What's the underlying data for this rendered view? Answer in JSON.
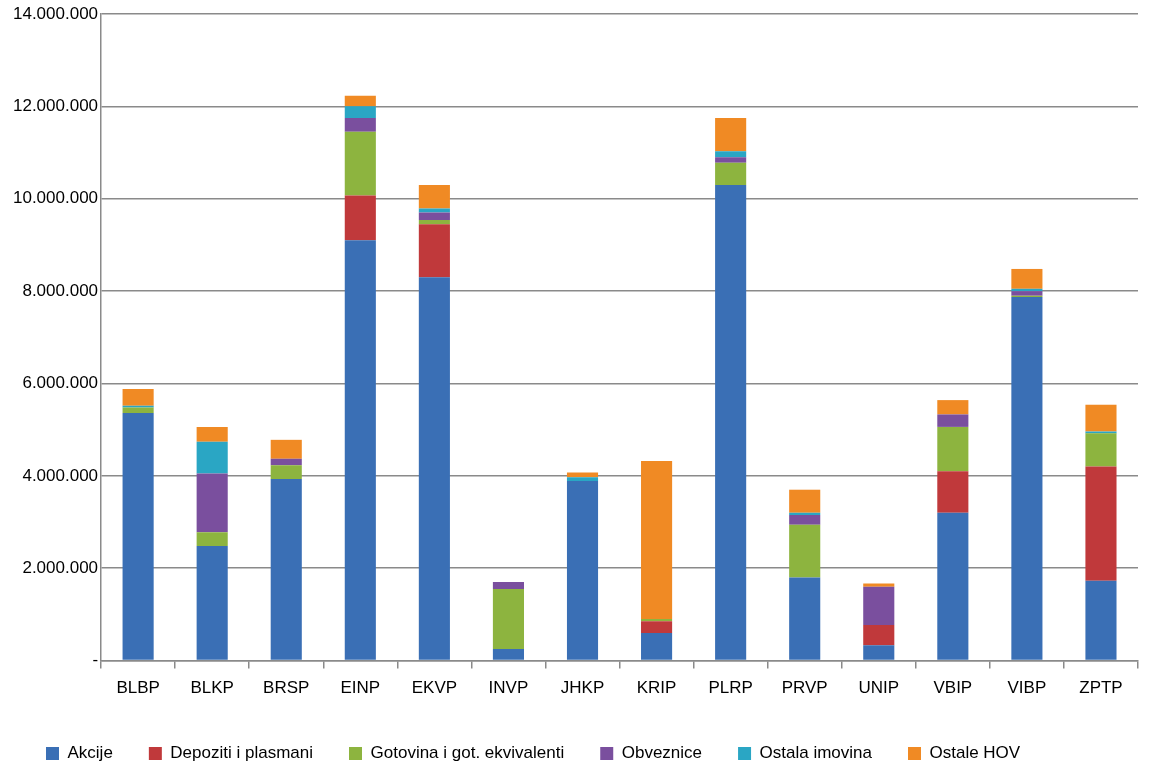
{
  "chart_data": {
    "type": "bar",
    "stacked": true,
    "categories": [
      "BLBP",
      "BLKP",
      "BRSP",
      "EINP",
      "EKVP",
      "INVP",
      "JHKP",
      "KRIP",
      "PLRP",
      "PRVP",
      "UNIP",
      "VBIP",
      "VIBP",
      "ZPTP"
    ],
    "series": [
      {
        "name": "Akcije",
        "color": "#3a6fb5",
        "values": [
          5360000,
          2480000,
          3930000,
          9100000,
          8300000,
          250000,
          3890000,
          600000,
          10300000,
          1800000,
          330000,
          3200000,
          7870000,
          1730000
        ]
      },
      {
        "name": "Depoziti i plasmani",
        "color": "#c0393b",
        "values": [
          0,
          0,
          0,
          970000,
          1150000,
          0,
          0,
          250000,
          0,
          0,
          440000,
          900000,
          0,
          2470000
        ]
      },
      {
        "name": "Gotovina i got. ekvivalenti",
        "color": "#8db43f",
        "values": [
          120000,
          300000,
          300000,
          1380000,
          90000,
          1300000,
          0,
          50000,
          480000,
          1140000,
          0,
          960000,
          30000,
          720000
        ]
      },
      {
        "name": "Obveznice",
        "color": "#7a4f9e",
        "values": [
          0,
          1270000,
          140000,
          300000,
          160000,
          150000,
          0,
          0,
          120000,
          210000,
          830000,
          270000,
          100000,
          0
        ]
      },
      {
        "name": "Ostala imovina",
        "color": "#2aa6c4",
        "values": [
          40000,
          690000,
          0,
          250000,
          90000,
          0,
          80000,
          0,
          130000,
          50000,
          0,
          0,
          50000,
          40000
        ]
      },
      {
        "name": "Ostale HOV",
        "color": "#f08a24",
        "values": [
          360000,
          320000,
          410000,
          230000,
          510000,
          0,
          100000,
          3420000,
          720000,
          500000,
          70000,
          310000,
          430000,
          580000
        ]
      }
    ],
    "ylim": [
      0,
      14000000
    ],
    "yticks": [
      {
        "value": 0,
        "label": "-"
      },
      {
        "value": 2000000,
        "label": "2.000.000"
      },
      {
        "value": 4000000,
        "label": "4.000.000"
      },
      {
        "value": 6000000,
        "label": "6.000.000"
      },
      {
        "value": 8000000,
        "label": "8.000.000"
      },
      {
        "value": 10000000,
        "label": "10.000.000"
      },
      {
        "value": 12000000,
        "label": "12.000.000"
      },
      {
        "value": 14000000,
        "label": "14.000.000"
      }
    ],
    "grid": "y",
    "legend": "bottom"
  }
}
